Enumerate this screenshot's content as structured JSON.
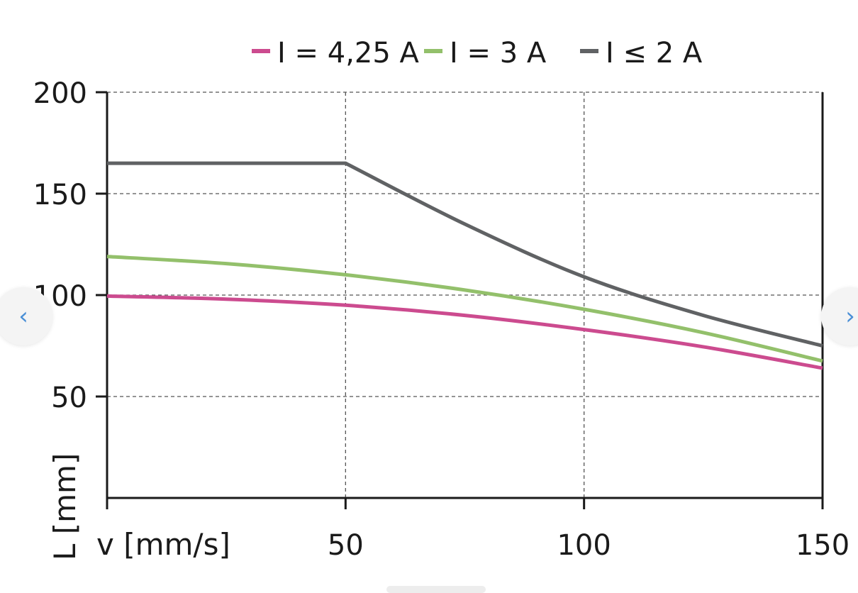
{
  "carousel": {
    "prev_icon": "chevron-left-icon",
    "next_icon": "chevron-right-icon",
    "prev_glyph": "‹",
    "next_glyph": "›"
  },
  "chart_data": {
    "type": "line",
    "title": "",
    "xlabel": "v [mm/s]",
    "ylabel": "L [mm]",
    "xlim": [
      0,
      150
    ],
    "ylim": [
      0,
      200
    ],
    "x_ticks": [
      50,
      100,
      150
    ],
    "y_ticks": [
      50,
      100,
      150,
      200
    ],
    "grid": true,
    "legend_position": "top",
    "series": [
      {
        "name": "I = 4,25 A",
        "color": "#cc4b8f",
        "x": [
          0,
          25,
          50,
          75,
          100,
          125,
          150
        ],
        "y": [
          99.5,
          98,
          95,
          90,
          83,
          74.5,
          64
        ]
      },
      {
        "name": "I = 3 A",
        "color": "#93c06b",
        "x": [
          0,
          25,
          50,
          75,
          100,
          125,
          150
        ],
        "y": [
          119,
          115.5,
          110,
          102.5,
          93,
          81.5,
          67.5
        ]
      },
      {
        "name": "I ≤ 2 A",
        "color": "#606264",
        "x": [
          0,
          50,
          75,
          100,
          125,
          150
        ],
        "y": [
          165,
          165,
          135,
          109,
          90,
          75
        ]
      }
    ]
  }
}
